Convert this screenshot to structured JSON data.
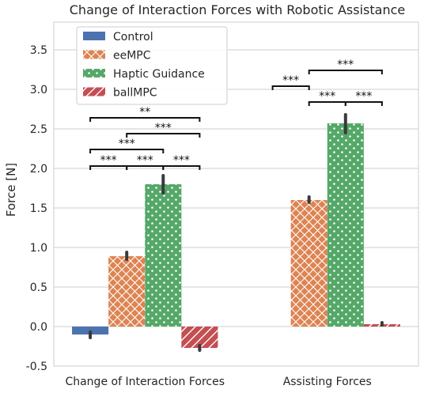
{
  "chart_data": {
    "type": "bar",
    "title": "Change of Interaction Forces with Robotic Assistance",
    "xlabel": "",
    "ylabel": "Force [N]",
    "ylim": [
      -0.5,
      3.85
    ],
    "yticks": [
      "-0.5",
      "0.0",
      "0.5",
      "1.0",
      "1.5",
      "2.0",
      "2.5",
      "3.0",
      "3.5"
    ],
    "yticks_values": [
      -0.5,
      0.0,
      0.5,
      1.0,
      1.5,
      2.0,
      2.5,
      3.0,
      3.5
    ],
    "grid": "horizontal",
    "legend_position": "top-left",
    "categories": [
      "Change of Interaction Forces",
      "Assisting Forces"
    ],
    "series": [
      {
        "name": "Control",
        "color": "#4c72b0",
        "pattern": "solid",
        "values": [
          -0.1,
          null
        ],
        "err_low": [
          -0.14,
          null
        ],
        "err_high": [
          -0.07,
          null
        ]
      },
      {
        "name": "eeMPC",
        "color": "#dd8452",
        "pattern": "crosshatch",
        "values": [
          0.89,
          1.6
        ],
        "err_low": [
          0.85,
          1.57
        ],
        "err_high": [
          0.94,
          1.64
        ]
      },
      {
        "name": "Haptic Guidance",
        "color": "#55a868",
        "pattern": "dots",
        "values": [
          1.8,
          2.57
        ],
        "err_low": [
          1.69,
          2.45
        ],
        "err_high": [
          1.91,
          2.68
        ]
      },
      {
        "name": "ballMPC",
        "color": "#c44e52",
        "pattern": "diagonal",
        "values": [
          -0.27,
          0.03
        ],
        "err_low": [
          -0.3,
          0.02
        ],
        "err_high": [
          -0.24,
          0.05
        ]
      }
    ],
    "significance": [
      {
        "group": 0,
        "from": 0,
        "to": 1,
        "label": "***",
        "level": 2.03
      },
      {
        "group": 0,
        "from": 1,
        "to": 2,
        "label": "***",
        "level": 2.03
      },
      {
        "group": 0,
        "from": 2,
        "to": 3,
        "label": "***",
        "level": 2.03
      },
      {
        "group": 0,
        "from": 0,
        "to": 2,
        "label": "***",
        "level": 2.24
      },
      {
        "group": 0,
        "from": 1,
        "to": 3,
        "label": "***",
        "level": 2.44
      },
      {
        "group": 0,
        "from": 0,
        "to": 3,
        "label": "**",
        "level": 2.64
      },
      {
        "group": 1,
        "from": 0,
        "to": 1,
        "label": "***",
        "level": 3.04
      },
      {
        "group": 1,
        "from": 1,
        "to": 2,
        "label": "***",
        "level": 2.84
      },
      {
        "group": 1,
        "from": 2,
        "to": 3,
        "label": "***",
        "level": 2.84
      },
      {
        "group": 1,
        "from": 1,
        "to": 3,
        "label": "***",
        "level": 3.24
      }
    ]
  }
}
